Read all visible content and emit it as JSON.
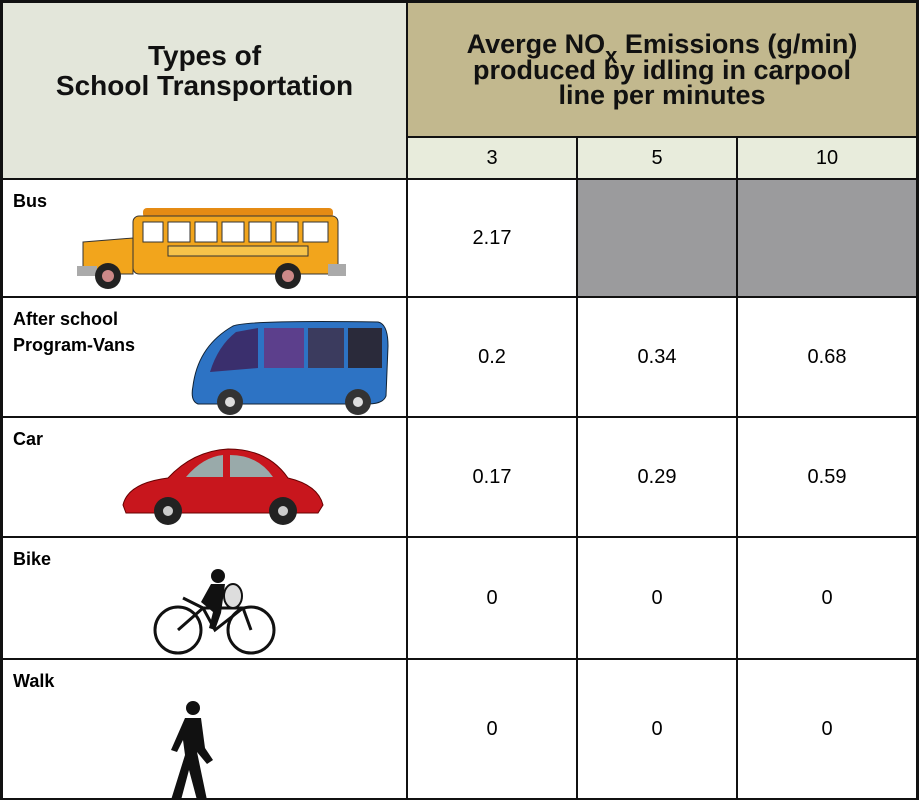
{
  "header": {
    "type_lines": [
      "Types of",
      "School Transportation"
    ],
    "emissions_title": {
      "before_sub": "Averge NO",
      "sub": "x",
      "after_sub": " Emissions (g/min)",
      "lines": [
        "produced by idling in carpool",
        "line per minutes"
      ]
    },
    "minutes": [
      3,
      5,
      10
    ]
  },
  "rows": [
    {
      "label": [
        "Bus"
      ],
      "values": [
        2.17,
        null,
        null
      ]
    },
    {
      "label": [
        "After school",
        "Program-Vans"
      ],
      "values": [
        0.2,
        0.34,
        0.68
      ]
    },
    {
      "label": [
        "Car"
      ],
      "values": [
        0.17,
        0.29,
        0.59
      ]
    },
    {
      "label": [
        "Bike"
      ],
      "values": [
        0,
        0,
        0
      ]
    },
    {
      "label": [
        "Walk"
      ],
      "values": [
        0,
        0,
        0
      ]
    }
  ]
}
